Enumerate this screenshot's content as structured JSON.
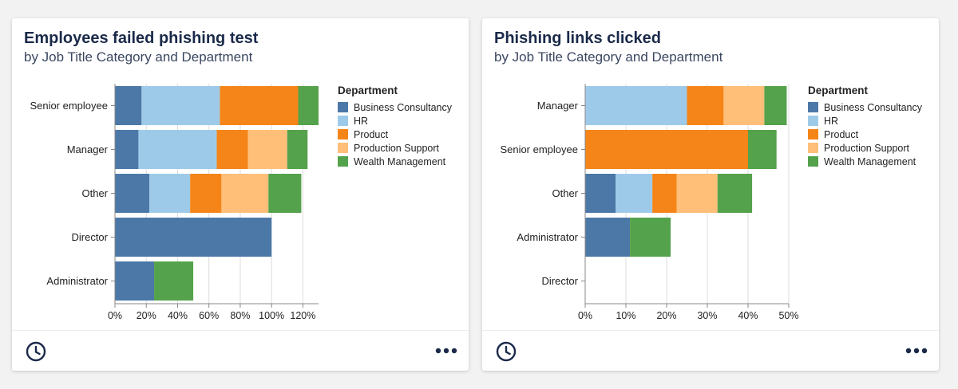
{
  "colors": {
    "Business Consultancy": "#4c78a8",
    "HR": "#9ecae9",
    "Product": "#f58518",
    "Production Support": "#ffbf79",
    "Wealth Management": "#54a24b"
  },
  "cards": [
    {
      "title": "Employees failed phishing test",
      "subtitle": "by Job Title Category and Department",
      "footer": {
        "left_icon": "clock-icon",
        "right_icon": "more-dots-icon"
      },
      "chart_data": {
        "type": "bar",
        "orientation": "horizontal",
        "stacked": true,
        "categories": [
          "Senior employee",
          "Manager",
          "Other",
          "Director",
          "Administrator"
        ],
        "series": [
          {
            "name": "Business Consultancy",
            "values": [
              17,
              15,
              22,
              100,
              25
            ]
          },
          {
            "name": "HR",
            "values": [
              50,
              50,
              26,
              0,
              0
            ]
          },
          {
            "name": "Product",
            "values": [
              50,
              20,
              20,
              0,
              0
            ]
          },
          {
            "name": "Production Support",
            "values": [
              0,
              25,
              30,
              0,
              0
            ]
          },
          {
            "name": "Wealth Management",
            "values": [
              13,
              13,
              21,
              0,
              25
            ]
          }
        ],
        "xlim": [
          0,
          130
        ],
        "xticks": [
          0,
          20,
          40,
          60,
          80,
          100,
          120
        ],
        "xtick_labels": [
          "0%",
          "20%",
          "40%",
          "60%",
          "80%",
          "100%",
          "120%"
        ],
        "grid": true,
        "legend": {
          "title": "Department",
          "placement": "right"
        }
      }
    },
    {
      "title": "Phishing links clicked",
      "subtitle": "by Job Title Category and Department",
      "footer": {
        "left_icon": "clock-icon",
        "right_icon": "more-dots-icon"
      },
      "chart_data": {
        "type": "bar",
        "orientation": "horizontal",
        "stacked": true,
        "categories": [
          "Manager",
          "Senior employee",
          "Other",
          "Administrator",
          "Director"
        ],
        "series": [
          {
            "name": "Business Consultancy",
            "values": [
              0,
              0,
              7.5,
              11,
              0
            ]
          },
          {
            "name": "HR",
            "values": [
              25,
              0,
              9,
              0,
              0
            ]
          },
          {
            "name": "Product",
            "values": [
              9,
              40,
              6,
              0,
              0
            ]
          },
          {
            "name": "Production Support",
            "values": [
              10,
              0,
              10,
              0,
              0
            ]
          },
          {
            "name": "Wealth Management",
            "values": [
              5.5,
              7,
              8.5,
              10,
              0
            ]
          }
        ],
        "xlim": [
          0,
          50
        ],
        "xticks": [
          0,
          10,
          20,
          30,
          40,
          50
        ],
        "xtick_labels": [
          "0%",
          "10%",
          "20%",
          "30%",
          "40%",
          "50%"
        ],
        "grid": true,
        "legend": {
          "title": "Department",
          "placement": "right"
        }
      }
    }
  ]
}
